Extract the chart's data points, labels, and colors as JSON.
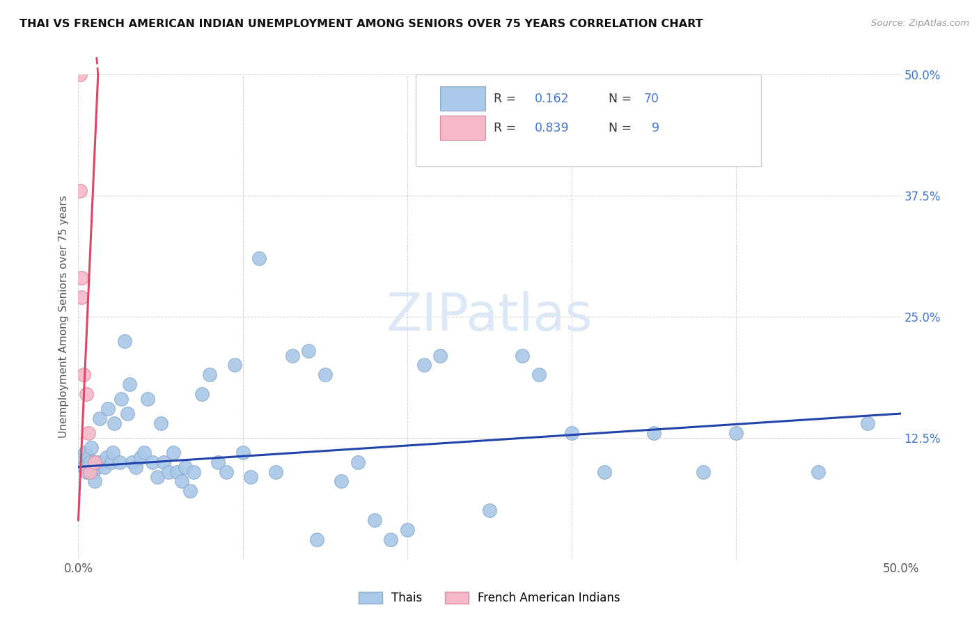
{
  "title": "THAI VS FRENCH AMERICAN INDIAN UNEMPLOYMENT AMONG SENIORS OVER 75 YEARS CORRELATION CHART",
  "source": "Source: ZipAtlas.com",
  "ylabel": "Unemployment Among Seniors over 75 years",
  "xlim": [
    0,
    0.5
  ],
  "ylim": [
    0,
    0.5
  ],
  "xticks": [
    0.0,
    0.1,
    0.2,
    0.3,
    0.4,
    0.5
  ],
  "yticks": [
    0.0,
    0.125,
    0.25,
    0.375,
    0.5
  ],
  "xticklabels": [
    "0.0%",
    "",
    "",
    "",
    "",
    "50.0%"
  ],
  "yticklabels": [
    "",
    "12.5%",
    "25.0%",
    "37.5%",
    "50.0%"
  ],
  "thai_color": "#aac8e8",
  "thai_edge_color": "#88aacc",
  "french_color": "#f4b8c8",
  "french_edge_color": "#dd8899",
  "line_thai_color": "#2244aa",
  "line_french_color": "#dd4466",
  "watermark_color": "#dce8f5",
  "legend_r_thai": "0.162",
  "legend_n_thai": "70",
  "legend_r_french": "0.839",
  "legend_n_french": "9",
  "blue_text_color": "#4477cc",
  "thai_x": [
    0.002,
    0.003,
    0.004,
    0.005,
    0.006,
    0.007,
    0.008,
    0.009,
    0.01,
    0.011,
    0.012,
    0.013,
    0.015,
    0.016,
    0.017,
    0.018,
    0.02,
    0.021,
    0.022,
    0.025,
    0.026,
    0.028,
    0.03,
    0.031,
    0.033,
    0.035,
    0.038,
    0.04,
    0.042,
    0.045,
    0.048,
    0.05,
    0.052,
    0.055,
    0.058,
    0.06,
    0.063,
    0.065,
    0.068,
    0.07,
    0.075,
    0.08,
    0.085,
    0.09,
    0.095,
    0.1,
    0.105,
    0.11,
    0.12,
    0.13,
    0.14,
    0.145,
    0.15,
    0.16,
    0.17,
    0.18,
    0.19,
    0.2,
    0.21,
    0.22,
    0.25,
    0.27,
    0.28,
    0.3,
    0.32,
    0.35,
    0.38,
    0.4,
    0.45,
    0.48
  ],
  "thai_y": [
    0.1,
    0.095,
    0.11,
    0.09,
    0.105,
    0.1,
    0.115,
    0.09,
    0.08,
    0.095,
    0.1,
    0.145,
    0.1,
    0.095,
    0.105,
    0.155,
    0.1,
    0.11,
    0.14,
    0.1,
    0.165,
    0.225,
    0.15,
    0.18,
    0.1,
    0.095,
    0.105,
    0.11,
    0.165,
    0.1,
    0.085,
    0.14,
    0.1,
    0.09,
    0.11,
    0.09,
    0.08,
    0.095,
    0.07,
    0.09,
    0.17,
    0.19,
    0.1,
    0.09,
    0.2,
    0.11,
    0.085,
    0.31,
    0.09,
    0.21,
    0.215,
    0.02,
    0.19,
    0.08,
    0.1,
    0.04,
    0.02,
    0.03,
    0.2,
    0.21,
    0.05,
    0.21,
    0.19,
    0.13,
    0.09,
    0.13,
    0.09,
    0.13,
    0.09,
    0.14
  ],
  "french_x": [
    0.001,
    0.001,
    0.002,
    0.002,
    0.003,
    0.005,
    0.006,
    0.007,
    0.01
  ],
  "french_y": [
    0.5,
    0.38,
    0.29,
    0.27,
    0.19,
    0.17,
    0.13,
    0.09,
    0.1
  ],
  "thai_trend_x0": 0.0,
  "thai_trend_y0": 0.095,
  "thai_trend_x1": 0.5,
  "thai_trend_y1": 0.15,
  "french_trend_x0": 0.0,
  "french_trend_y0": 0.04,
  "french_trend_x1": 0.012,
  "french_trend_y1": 0.5
}
